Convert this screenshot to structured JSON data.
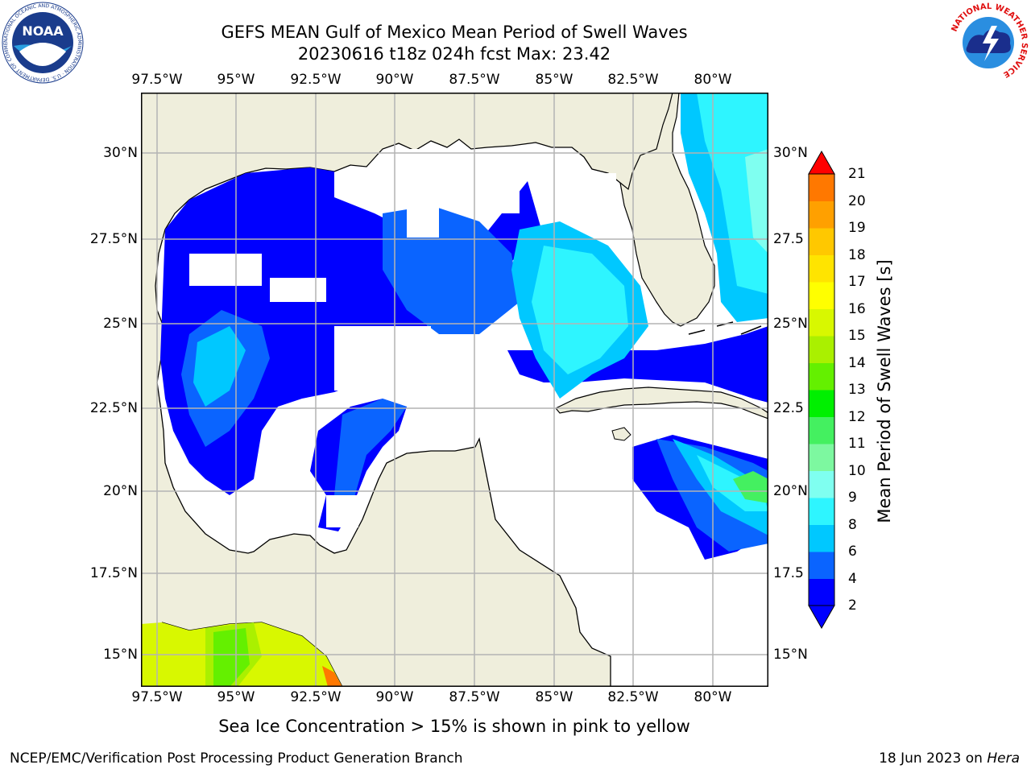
{
  "title": {
    "line1": "GEFS MEAN Gulf of Mexico Mean Period of Swell Waves",
    "line2": "20230616 t18z 024h fcst   Max: 23.42"
  },
  "map": {
    "lon_labels": [
      "97.5°W",
      "95°W",
      "92.5°W",
      "90°W",
      "87.5°W",
      "85°W",
      "82.5°W",
      "80°W"
    ],
    "lat_labels_left": [
      "30°N",
      "27.5°N",
      "25°N",
      "22.5°N",
      "20°N",
      "17.5°N",
      "15°N"
    ],
    "lat_labels_right": [
      "30°N",
      "27.5",
      "25°N",
      "22.5",
      "20°N",
      "17.5",
      "15°N"
    ],
    "colors": {
      "land": "#efeedc",
      "water": "#ffffff",
      "grid": "#b4b4b4",
      "coast": "#000000"
    }
  },
  "colorbar": {
    "title": "Mean Period of Swell Waves [s]",
    "tick_labels": [
      "2",
      "4",
      "6",
      "8",
      "9",
      "10",
      "11",
      "12",
      "13",
      "14",
      "15",
      "16",
      "17",
      "18",
      "19",
      "20",
      "21"
    ],
    "colors": [
      "#0000ff",
      "#0a64ff",
      "#00c8ff",
      "#2ef5ff",
      "#7ffff0",
      "#7df8a0",
      "#44f060",
      "#00f000",
      "#64f000",
      "#aaf000",
      "#d8f800",
      "#ffff00",
      "#ffe400",
      "#ffc800",
      "#ffa000",
      "#ff7800",
      "#ff4800",
      "#ff0000"
    ]
  },
  "note": "Sea Ice Concentration > 15% is shown in pink to yellow",
  "footer": {
    "left": "NCEP/EMC/Verification Post Processing Product Generation Branch",
    "right_date": "18 Jun 2023 on ",
    "right_host": "Hera"
  },
  "logos": {
    "noaa_text": "NOAA",
    "noaa_ring": "NATIONAL OCEANIC AND ATMOSPHERIC ADMINISTRATION · U.S. DEPARTMENT OF COMMERCE",
    "nws_ring": "NATIONAL WEATHER SERVICE"
  }
}
